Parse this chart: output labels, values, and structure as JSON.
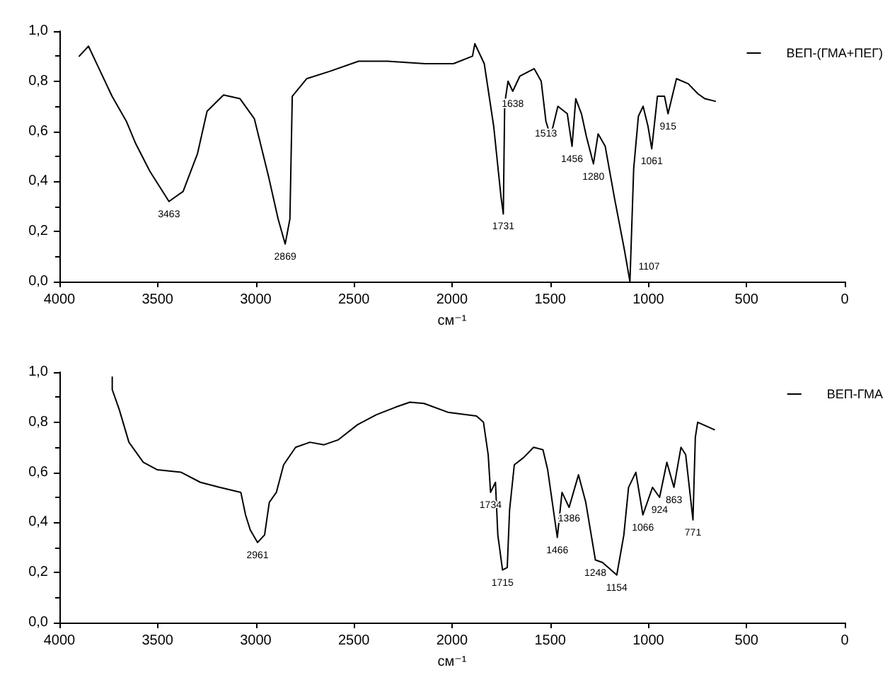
{
  "chart_data": [
    {
      "type": "line",
      "xlabel": "см⁻¹",
      "xlim": [
        4000,
        0
      ],
      "xticks": [
        4000,
        3500,
        3000,
        2500,
        2000,
        1500,
        1000,
        500,
        0
      ],
      "ylim": [
        0,
        1
      ],
      "yticks": [
        {
          "value": 0,
          "label": "0,0"
        },
        {
          "value": 0.2,
          "label": "0,2"
        },
        {
          "value": 0.4,
          "label": "0,4"
        },
        {
          "value": 0.6,
          "label": "0,6"
        },
        {
          "value": 0.8,
          "label": "0,8"
        },
        {
          "value": 1,
          "label": "1,0"
        }
      ],
      "grid": false,
      "legend": "top right",
      "marker": "none",
      "line_style": "solid",
      "series": [
        {
          "name": "ВЕП-(ГМА+ПЕГ)",
          "color": "#000000",
          "x": [
            3899,
            3852,
            3804,
            3732,
            3659,
            3611,
            3539,
            3442,
            3370,
            3297,
            3248,
            3164,
            3080,
            3007,
            2935,
            2886,
            2850,
            2826,
            2814,
            2741,
            2621,
            2476,
            2331,
            2138,
            1993,
            1896,
            1884,
            1836,
            1788,
            1751,
            1739,
            1732,
            1715,
            1691,
            1655,
            1582,
            1546,
            1522,
            1498,
            1461,
            1413,
            1389,
            1370,
            1341,
            1316,
            1280,
            1256,
            1220,
            1172,
            1123,
            1094,
            1075,
            1051,
            1027,
            1002,
            983,
            954,
            918,
            900,
            857,
            797,
            748,
            712,
            659
          ],
          "values": [
            0.9,
            0.94,
            0.86,
            0.74,
            0.64,
            0.55,
            0.44,
            0.32,
            0.36,
            0.51,
            0.68,
            0.745,
            0.73,
            0.65,
            0.42,
            0.25,
            0.15,
            0.25,
            0.74,
            0.81,
            0.84,
            0.88,
            0.88,
            0.87,
            0.87,
            0.9,
            0.95,
            0.87,
            0.62,
            0.34,
            0.27,
            0.71,
            0.8,
            0.76,
            0.82,
            0.85,
            0.8,
            0.64,
            0.58,
            0.7,
            0.67,
            0.54,
            0.73,
            0.67,
            0.58,
            0.47,
            0.59,
            0.54,
            0.33,
            0.13,
            0.0,
            0.45,
            0.66,
            0.7,
            0.62,
            0.53,
            0.74,
            0.74,
            0.67,
            0.81,
            0.79,
            0.75,
            0.73,
            0.72
          ]
        }
      ],
      "annotations": [
        {
          "text": "3463",
          "x": 3442,
          "y": 0.32
        },
        {
          "text": "2869",
          "x": 2850,
          "y": 0.15
        },
        {
          "text": "1731",
          "x": 1739,
          "y": 0.27
        },
        {
          "text": "1638",
          "x": 1691,
          "y": 0.76
        },
        {
          "text": "1513",
          "x": 1522,
          "y": 0.64
        },
        {
          "text": "1456",
          "x": 1389,
          "y": 0.54
        },
        {
          "text": "1280",
          "x": 1280,
          "y": 0.47
        },
        {
          "text": "1107",
          "x": 1094,
          "y": 0.0
        },
        {
          "text": "1061",
          "x": 983,
          "y": 0.53
        },
        {
          "text": "915",
          "x": 900,
          "y": 0.67
        }
      ]
    },
    {
      "type": "line",
      "xlabel": "см⁻¹",
      "xlim": [
        4000,
        0
      ],
      "xticks": [
        4000,
        3500,
        3000,
        2500,
        2000,
        1500,
        1000,
        500,
        0
      ],
      "ylim": [
        0,
        1
      ],
      "yticks": [
        {
          "value": 0,
          "label": "0,0"
        },
        {
          "value": 0.2,
          "label": "0,2"
        },
        {
          "value": 0.4,
          "label": "0,4"
        },
        {
          "value": 0.6,
          "label": "0,6"
        },
        {
          "value": 0.8,
          "label": "0,8"
        },
        {
          "value": 1,
          "label": "1,0"
        }
      ],
      "grid": false,
      "legend": "top right",
      "marker": "none",
      "line_style": "solid",
      "series": [
        {
          "name": "ВЕП-ГМА",
          "color": "#000000",
          "x": [
            3731,
            3731,
            3695,
            3646,
            3573,
            3501,
            3380,
            3282,
            3185,
            3076,
            3052,
            3028,
            2991,
            2955,
            2931,
            2895,
            2858,
            2797,
            2724,
            2652,
            2579,
            2482,
            2385,
            2288,
            2215,
            2143,
            2022,
            1925,
            1876,
            1840,
            1816,
            1804,
            1779,
            1767,
            1743,
            1719,
            1707,
            1683,
            1634,
            1585,
            1537,
            1513,
            1464,
            1440,
            1404,
            1356,
            1319,
            1270,
            1234,
            1161,
            1125,
            1101,
            1064,
            1028,
            979,
            943,
            906,
            870,
            834,
            810,
            773,
            761,
            749,
            664
          ],
          "values": [
            0.98,
            0.93,
            0.85,
            0.72,
            0.64,
            0.61,
            0.6,
            0.56,
            0.54,
            0.52,
            0.43,
            0.37,
            0.32,
            0.35,
            0.48,
            0.52,
            0.63,
            0.7,
            0.72,
            0.71,
            0.73,
            0.79,
            0.83,
            0.86,
            0.88,
            0.875,
            0.84,
            0.83,
            0.825,
            0.8,
            0.67,
            0.52,
            0.56,
            0.35,
            0.21,
            0.22,
            0.45,
            0.63,
            0.66,
            0.7,
            0.69,
            0.61,
            0.34,
            0.52,
            0.46,
            0.59,
            0.48,
            0.25,
            0.24,
            0.19,
            0.35,
            0.54,
            0.6,
            0.43,
            0.54,
            0.5,
            0.64,
            0.54,
            0.7,
            0.67,
            0.41,
            0.74,
            0.8,
            0.77
          ]
        }
      ],
      "annotations": [
        {
          "text": "2961",
          "x": 2991,
          "y": 0.32
        },
        {
          "text": "1734",
          "x": 1804,
          "y": 0.52
        },
        {
          "text": "1715",
          "x": 1743,
          "y": 0.21
        },
        {
          "text": "1466",
          "x": 1464,
          "y": 0.34
        },
        {
          "text": "1386",
          "x": 1404,
          "y": 0.465
        },
        {
          "text": "1248",
          "x": 1270,
          "y": 0.25
        },
        {
          "text": "1154",
          "x": 1161,
          "y": 0.19
        },
        {
          "text": "1066",
          "x": 1028,
          "y": 0.43
        },
        {
          "text": "924",
          "x": 943,
          "y": 0.5
        },
        {
          "text": "863",
          "x": 870,
          "y": 0.54
        },
        {
          "text": "771",
          "x": 773,
          "y": 0.41
        }
      ]
    }
  ]
}
